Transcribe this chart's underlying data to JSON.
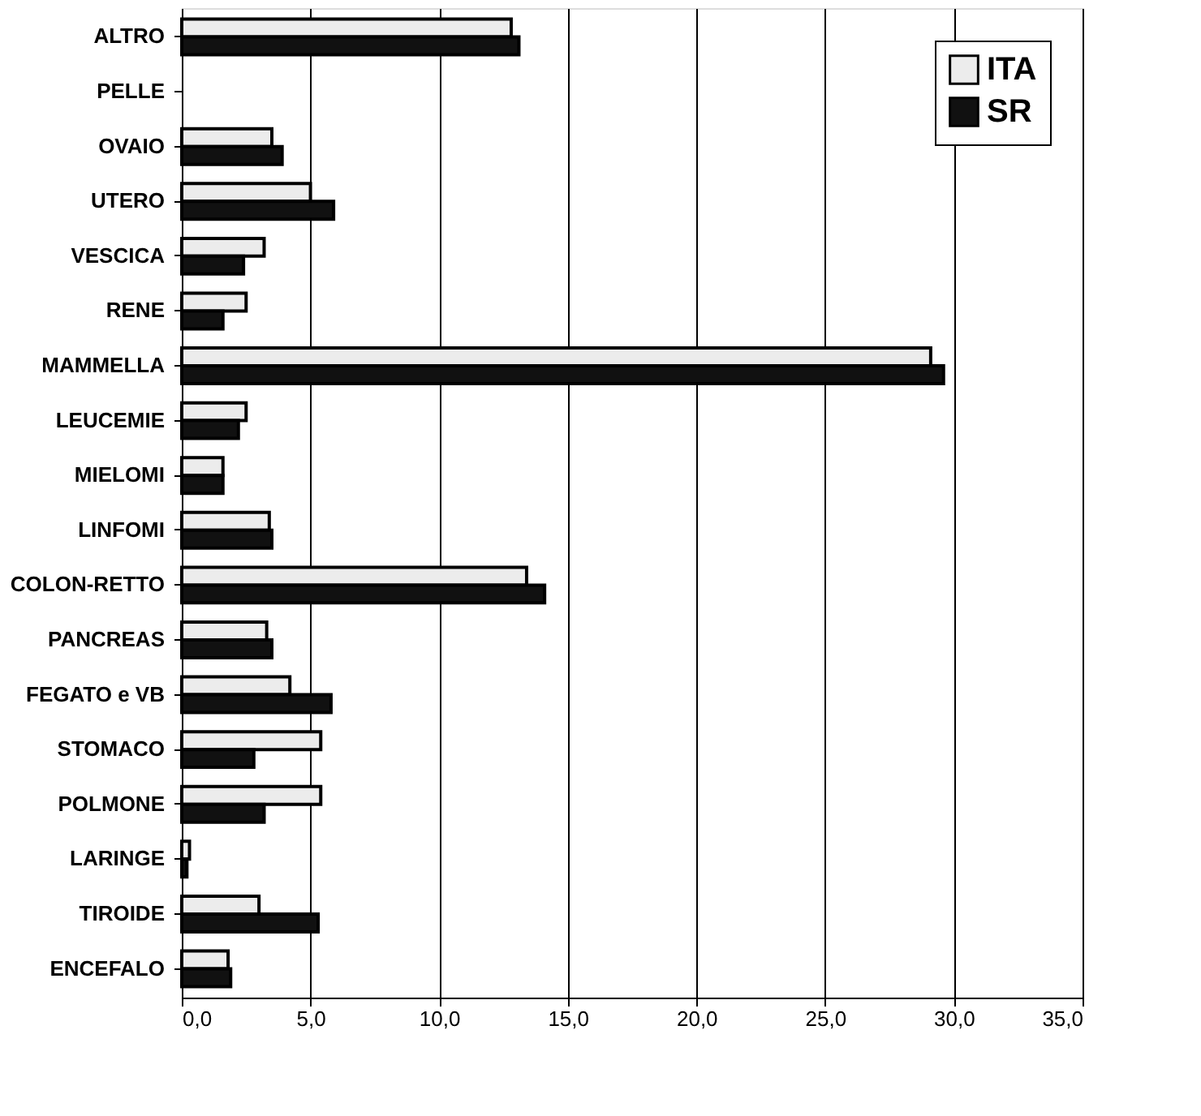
{
  "chart_data": {
    "type": "bar",
    "orientation": "horizontal",
    "categories": [
      "ALTRO",
      "PELLE",
      "OVAIO",
      "UTERO",
      "VESCICA",
      "RENE",
      "MAMMELLA",
      "LEUCEMIE",
      "MIELOMI",
      "LINFOMI",
      "COLON-RETTO",
      "PANCREAS",
      "FEGATO e VB",
      "STOMACO",
      "POLMONE",
      "LARINGE",
      "TIROIDE",
      "ENCEFALO"
    ],
    "series": [
      {
        "name": "ITA",
        "color": "#ececec",
        "values": [
          12.8,
          null,
          3.5,
          5.0,
          3.2,
          2.5,
          29.1,
          2.5,
          1.6,
          3.4,
          13.4,
          3.3,
          4.2,
          5.4,
          5.4,
          0.3,
          3.0,
          1.8
        ]
      },
      {
        "name": "SR",
        "color": "#111111",
        "values": [
          13.1,
          null,
          3.9,
          5.9,
          2.4,
          1.6,
          29.6,
          2.2,
          1.6,
          3.5,
          14.1,
          3.5,
          5.8,
          2.8,
          3.2,
          0.2,
          5.3,
          1.9
        ]
      }
    ],
    "xlim": [
      0,
      35
    ],
    "xticks": [
      {
        "value": 0,
        "label": "0,0"
      },
      {
        "value": 5,
        "label": "5,0"
      },
      {
        "value": 10,
        "label": "10,0"
      },
      {
        "value": 15,
        "label": "15,0"
      },
      {
        "value": 20,
        "label": "20,0"
      },
      {
        "value": 25,
        "label": "25,0"
      },
      {
        "value": 30,
        "label": "30,0"
      },
      {
        "value": 35,
        "label": "35,0"
      }
    ],
    "grid": "x",
    "legend": "top right"
  }
}
